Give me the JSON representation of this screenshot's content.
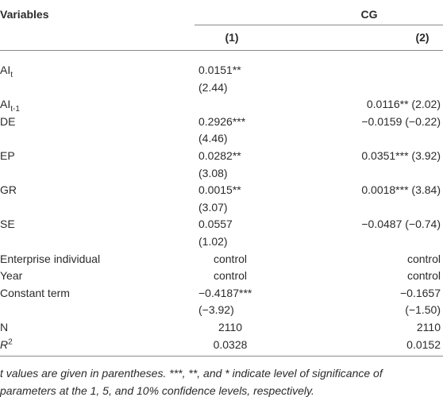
{
  "header": {
    "variables": "Variables",
    "group": "CG",
    "columns": [
      "(1)",
      "(2)"
    ]
  },
  "rows": [
    {
      "label": "AI",
      "sub": "t",
      "c1": "0.0151**",
      "c1_t": "(2.44)"
    },
    {
      "label": "AI",
      "sub": "t-1",
      "c2": "0.0116** (2.02)"
    },
    {
      "label": "DE",
      "c1": "0.2926***",
      "c1_t": "(4.46)",
      "c2": "−0.0159 (−0.22)"
    },
    {
      "label": "EP",
      "c1": "0.0282**",
      "c1_t": "(3.08)",
      "c2": "0.0351*** (3.92)"
    },
    {
      "label": "GR",
      "c1": "0.0015**",
      "c1_t": "(3.07)",
      "c2": "0.0018*** (3.84)"
    },
    {
      "label": "SE",
      "c1": "0.0557",
      "c1_t": "(1.02)",
      "c2": "−0.0487 (−0.74)"
    },
    {
      "label": "Enterprise individual",
      "c1": "control",
      "c2": "control"
    },
    {
      "label": "Year",
      "c1": "control",
      "c2": "control"
    },
    {
      "label": "Constant term",
      "c1": "−0.4187***",
      "c1_t": "(−3.92)",
      "c2": "−0.1657",
      "c2_t": "(−1.50)"
    },
    {
      "label": "N",
      "c1": "2110",
      "c2": "2110"
    },
    {
      "label": "R",
      "sup": "2",
      "c1": "0.0328",
      "c2": "0.0152"
    }
  ],
  "note": "t values are given in parentheses. ***, **, and * indicate level of significance of parameters at the 1, 5, and 10% confidence levels, respectively."
}
